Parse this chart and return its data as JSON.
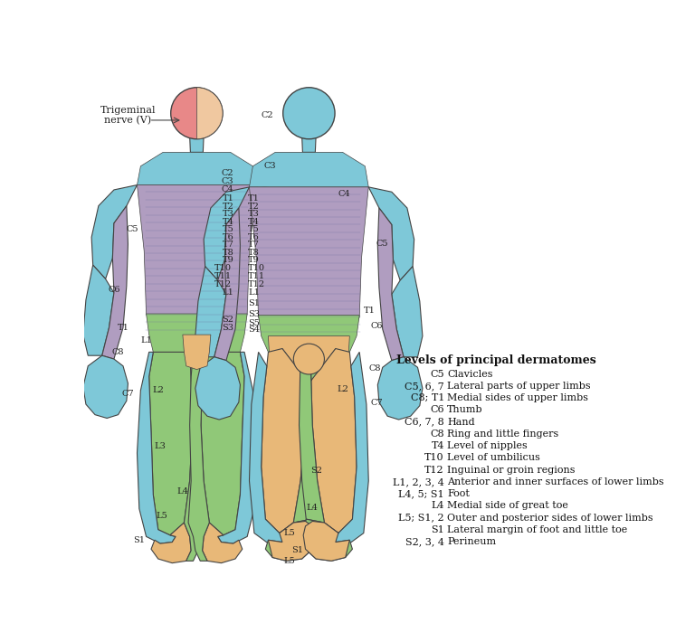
{
  "colors": {
    "blue": "#7EC8D8",
    "purple": "#B09DC0",
    "green": "#90C878",
    "orange": "#E8B878",
    "pink": "#E88888",
    "skin": "#F0C8A0",
    "outline": "#444444",
    "bg": "#FFFFFF"
  },
  "legend_title": "Levels of principal dermatomes",
  "legend_entries": [
    [
      "C5",
      "Clavicles"
    ],
    [
      "C5, 6, 7",
      "Lateral parts of upper limbs"
    ],
    [
      "C8; T1",
      "Medial sides of upper limbs"
    ],
    [
      "C6",
      "Thumb"
    ],
    [
      "C6, 7, 8",
      "Hand"
    ],
    [
      "C8",
      "Ring and little fingers"
    ],
    [
      "T4",
      "Level of nipples"
    ],
    [
      "T10",
      "Level of umbilicus"
    ],
    [
      "T12",
      "Inguinal or groin regions"
    ],
    [
      "L1, 2, 3, 4",
      "Anterior and inner surfaces of lower limbs"
    ],
    [
      "L4, 5; S1",
      "Foot"
    ],
    [
      "L4",
      "Medial side of great toe"
    ],
    [
      "L5; S1, 2",
      "Outer and posterior sides of lower limbs"
    ],
    [
      "S1",
      "Lateral margin of foot and little toe"
    ],
    [
      "S2, 3, 4",
      "Perineum"
    ]
  ]
}
